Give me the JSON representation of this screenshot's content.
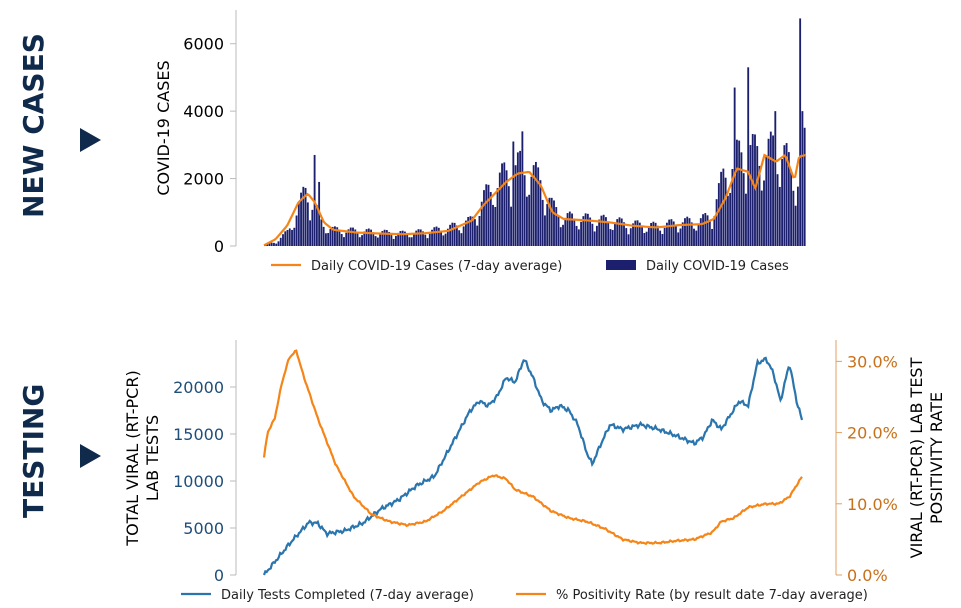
{
  "sections": {
    "new_cases_label": "NEW CASES",
    "testing_label": "TESTING"
  },
  "colors": {
    "navy": "#1b1f6e",
    "orange": "#f58518",
    "blue": "#2a75ad",
    "heading": "#0f2a4a",
    "orange_axis": "#c8701a",
    "blue_axis": "#1f4e79"
  },
  "chart_data": [
    {
      "type": "bar",
      "name": "new-cases",
      "title": "",
      "ylabel": "COVID-19 CASES",
      "xlabel": "",
      "ylim": [
        0,
        7000
      ],
      "yticks": [
        0,
        2000,
        4000,
        6000
      ],
      "ytick_labels": [
        "0",
        "2000",
        "4000",
        "6000"
      ],
      "legend": [
        "Daily COVID-19 Cases (7-day average)",
        "Daily COVID-19 Cases"
      ],
      "bar_keyframes": [
        [
          0,
          40
        ],
        [
          5,
          120
        ],
        [
          10,
          400
        ],
        [
          15,
          1100
        ],
        [
          18,
          1600
        ],
        [
          21,
          1200
        ],
        [
          25,
          600
        ],
        [
          30,
          450
        ],
        [
          40,
          420
        ],
        [
          50,
          380
        ],
        [
          60,
          350
        ],
        [
          70,
          400
        ],
        [
          80,
          500
        ],
        [
          90,
          700
        ],
        [
          95,
          1300
        ],
        [
          100,
          1700
        ],
        [
          105,
          2000
        ],
        [
          110,
          2200
        ],
        [
          115,
          2100
        ],
        [
          120,
          1800
        ],
        [
          125,
          1100
        ],
        [
          130,
          800
        ],
        [
          140,
          750
        ],
        [
          150,
          700
        ],
        [
          160,
          600
        ],
        [
          170,
          550
        ],
        [
          180,
          650
        ],
        [
          190,
          700
        ],
        [
          195,
          900
        ],
        [
          200,
          2000
        ],
        [
          205,
          2400
        ],
        [
          210,
          2700
        ],
        [
          215,
          2500
        ],
        [
          220,
          2600
        ],
        [
          225,
          2800
        ],
        [
          230,
          1800
        ],
        [
          235,
          2700
        ]
      ],
      "bar_spikes": [
        [
          22,
          2700
        ],
        [
          24,
          1900
        ],
        [
          108,
          3100
        ],
        [
          112,
          3400
        ],
        [
          205,
          4700
        ],
        [
          210,
          5300
        ],
        [
          222,
          4000
        ],
        [
          233,
          6750
        ],
        [
          234,
          4000
        ]
      ],
      "avg_keyframes": [
        [
          0,
          20
        ],
        [
          5,
          200
        ],
        [
          10,
          600
        ],
        [
          15,
          1300
        ],
        [
          19,
          1550
        ],
        [
          22,
          1300
        ],
        [
          26,
          700
        ],
        [
          30,
          480
        ],
        [
          40,
          400
        ],
        [
          50,
          370
        ],
        [
          60,
          350
        ],
        [
          70,
          380
        ],
        [
          80,
          450
        ],
        [
          90,
          750
        ],
        [
          95,
          1200
        ],
        [
          100,
          1550
        ],
        [
          105,
          1900
        ],
        [
          110,
          2150
        ],
        [
          115,
          2200
        ],
        [
          120,
          1800
        ],
        [
          125,
          1000
        ],
        [
          130,
          800
        ],
        [
          140,
          760
        ],
        [
          150,
          700
        ],
        [
          160,
          600
        ],
        [
          170,
          550
        ],
        [
          180,
          620
        ],
        [
          190,
          650
        ],
        [
          195,
          800
        ],
        [
          200,
          1400
        ],
        [
          205,
          2300
        ],
        [
          210,
          2200
        ],
        [
          213,
          1700
        ],
        [
          217,
          2700
        ],
        [
          222,
          2500
        ],
        [
          226,
          2700
        ],
        [
          230,
          1950
        ],
        [
          232,
          2650
        ],
        [
          235,
          2700
        ]
      ]
    },
    {
      "type": "line",
      "name": "testing",
      "ylabel_left": [
        "TOTAL VIRAL (RT-PCR)",
        "LAB TESTS"
      ],
      "ylabel_right": [
        "VIRAL (RT-PCR) LAB TEST",
        "POSITIVITY RATE"
      ],
      "ylim_left": [
        0,
        25000
      ],
      "yticks_left": [
        0,
        5000,
        10000,
        15000,
        20000
      ],
      "ytick_labels_left": [
        "0",
        "5000",
        "10000",
        "15000",
        "20000"
      ],
      "ylim_right": [
        0,
        33
      ],
      "yticks_right": [
        0,
        10,
        20,
        30
      ],
      "ytick_labels_right": [
        "0.0%",
        "10.0%",
        "20.0%",
        "30.0%"
      ],
      "legend": [
        "Daily Tests Completed (7-day average)",
        "% Positivity Rate (by result date 7-day average)"
      ],
      "tests_keyframes": [
        [
          0,
          0
        ],
        [
          15,
          3500
        ],
        [
          25,
          5600
        ],
        [
          30,
          5500
        ],
        [
          35,
          4400
        ],
        [
          45,
          4700
        ],
        [
          55,
          5500
        ],
        [
          65,
          7000
        ],
        [
          75,
          8000
        ],
        [
          85,
          9500
        ],
        [
          95,
          10500
        ],
        [
          105,
          14000
        ],
        [
          115,
          17500
        ],
        [
          120,
          18500
        ],
        [
          125,
          18000
        ],
        [
          130,
          19000
        ],
        [
          135,
          21000
        ],
        [
          140,
          20500
        ],
        [
          145,
          23000
        ],
        [
          150,
          21000
        ],
        [
          155,
          18500
        ],
        [
          160,
          17500
        ],
        [
          165,
          18000
        ],
        [
          170,
          17500
        ],
        [
          175,
          16000
        ],
        [
          180,
          13000
        ],
        [
          183,
          11800
        ],
        [
          188,
          14000
        ],
        [
          193,
          16000
        ],
        [
          200,
          15500
        ],
        [
          210,
          16000
        ],
        [
          220,
          15500
        ],
        [
          230,
          14800
        ],
        [
          240,
          14000
        ],
        [
          245,
          14700
        ],
        [
          250,
          16500
        ],
        [
          255,
          15500
        ],
        [
          260,
          17000
        ],
        [
          265,
          18500
        ],
        [
          270,
          18000
        ],
        [
          275,
          22500
        ],
        [
          280,
          23000
        ],
        [
          284,
          21500
        ],
        [
          288,
          18500
        ],
        [
          293,
          22500
        ],
        [
          297,
          18500
        ],
        [
          300,
          16500
        ]
      ],
      "positivity_keyframes": [
        [
          0,
          16.5
        ],
        [
          2,
          20
        ],
        [
          6,
          22
        ],
        [
          10,
          27
        ],
        [
          14,
          30.5
        ],
        [
          18,
          31.5
        ],
        [
          22,
          28
        ],
        [
          30,
          22
        ],
        [
          40,
          15.5
        ],
        [
          50,
          11
        ],
        [
          60,
          8.5
        ],
        [
          70,
          7.5
        ],
        [
          80,
          7
        ],
        [
          90,
          7.5
        ],
        [
          100,
          9
        ],
        [
          110,
          11
        ],
        [
          120,
          13
        ],
        [
          128,
          14
        ],
        [
          135,
          13.5
        ],
        [
          140,
          12
        ],
        [
          150,
          11
        ],
        [
          160,
          9
        ],
        [
          170,
          8
        ],
        [
          180,
          7.5
        ],
        [
          190,
          6.5
        ],
        [
          200,
          5
        ],
        [
          210,
          4.5
        ],
        [
          220,
          4.5
        ],
        [
          230,
          4.8
        ],
        [
          240,
          5
        ],
        [
          250,
          6
        ],
        [
          255,
          7.5
        ],
        [
          262,
          8
        ],
        [
          270,
          9.5
        ],
        [
          280,
          10
        ],
        [
          287,
          10
        ],
        [
          293,
          11
        ],
        [
          300,
          13.8
        ]
      ]
    }
  ]
}
